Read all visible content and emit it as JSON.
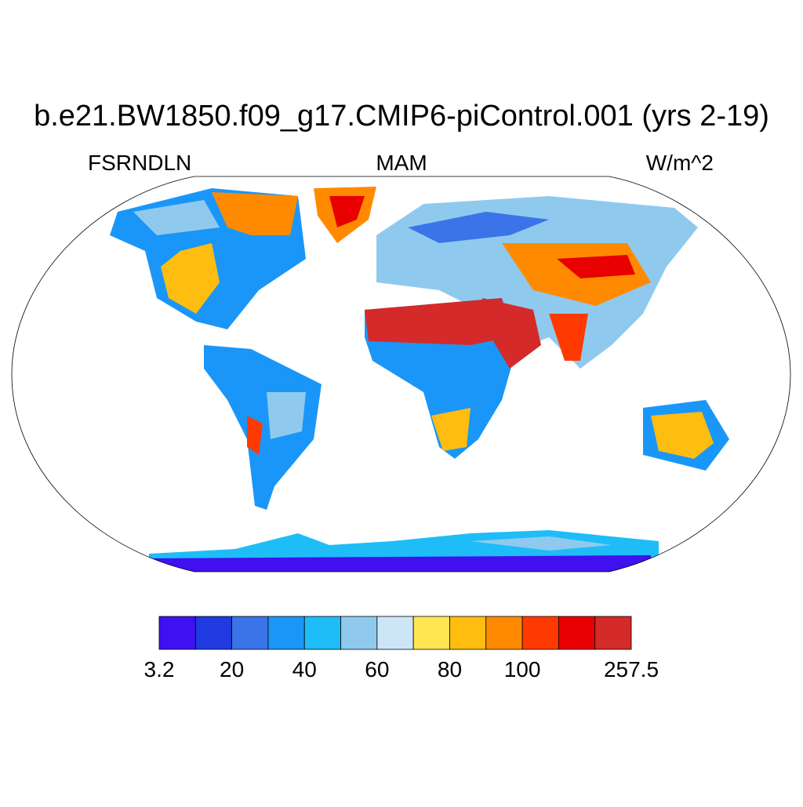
{
  "title": "b.e21.BW1850.f09_g17.CMIP6-piControl.001 (yrs 2-19)",
  "left_string": "FSRNDLN",
  "center_string": "MAM",
  "right_string": "W/m^2",
  "colorbar": {
    "colors": [
      "#4010f0",
      "#1f3ae0",
      "#3a74e8",
      "#1a96f8",
      "#1ebdf8",
      "#8fcaee",
      "#cce6f8",
      "#ffe552",
      "#ffbd10",
      "#ff8a00",
      "#ff3a00",
      "#e80000",
      "#d42a2a"
    ],
    "labels": [
      3.2,
      20,
      40,
      60,
      80,
      100,
      257.5
    ]
  }
}
